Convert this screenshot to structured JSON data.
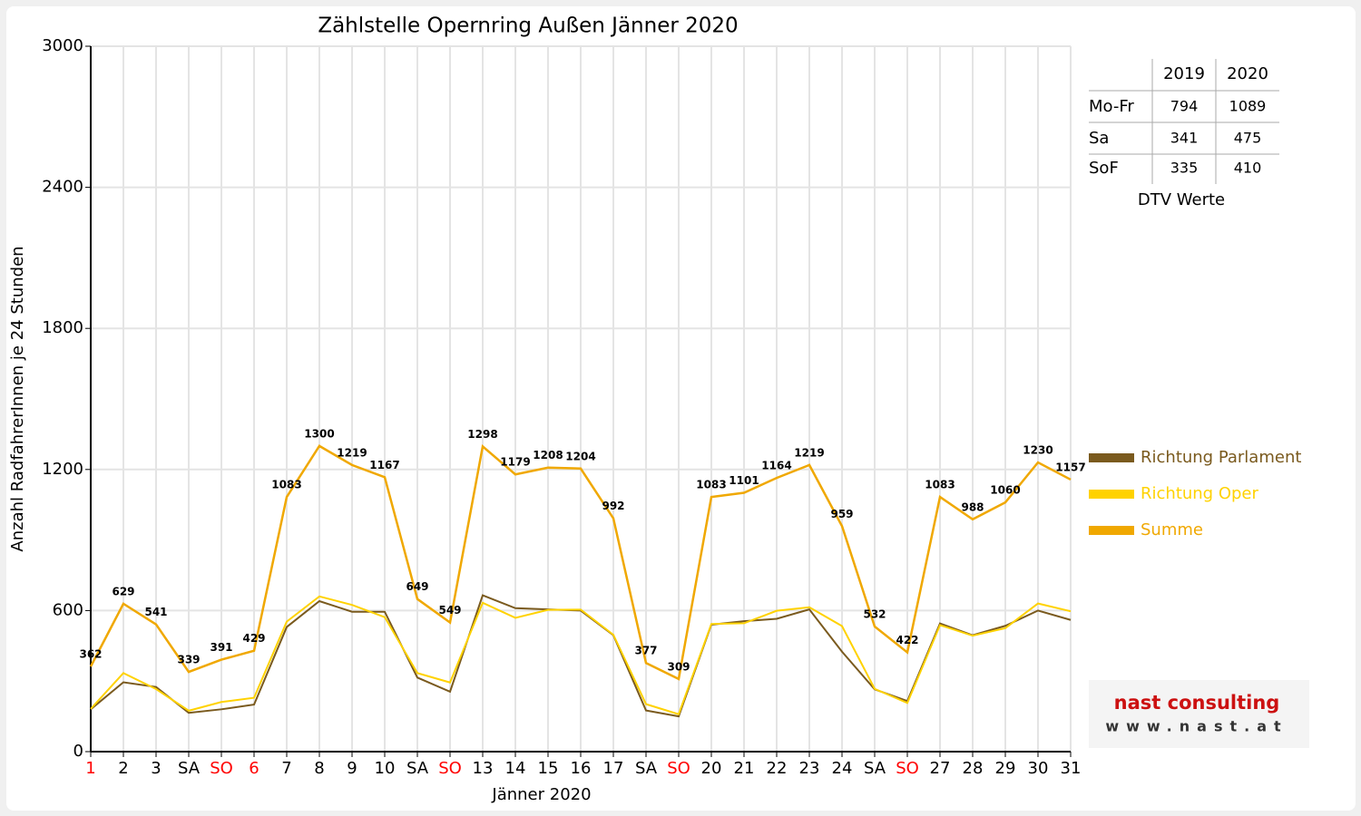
{
  "chart_data": {
    "type": "line",
    "title": "Zählstelle Opernring Außen Jänner 2020",
    "y_label": "Anzahl RadfahrerInnen je 24 Stunden",
    "x_label": "Jänner 2020",
    "categories": [
      "1",
      "2",
      "3",
      "SA",
      "SO",
      "6",
      "7",
      "8",
      "9",
      "10",
      "SA",
      "SO",
      "13",
      "14",
      "15",
      "16",
      "17",
      "SA",
      "SO",
      "20",
      "21",
      "22",
      "23",
      "24",
      "SA",
      "SO",
      "27",
      "28",
      "29",
      "30",
      "31"
    ],
    "category_colors": [
      "#ff0000",
      "#000000",
      "#000000",
      "#000000",
      "#ff0000",
      "#ff0000",
      "#000000",
      "#000000",
      "#000000",
      "#000000",
      "#000000",
      "#ff0000",
      "#000000",
      "#000000",
      "#000000",
      "#000000",
      "#000000",
      "#000000",
      "#ff0000",
      "#000000",
      "#000000",
      "#000000",
      "#000000",
      "#000000",
      "#000000",
      "#ff0000",
      "#000000",
      "#000000",
      "#000000",
      "#000000",
      "#000000"
    ],
    "series": [
      {
        "name": "Richtung Parlament",
        "color": "#7a5a1e",
        "values": [
          180,
          295,
          275,
          165,
          180,
          200,
          530,
          640,
          595,
          595,
          315,
          255,
          665,
          610,
          605,
          600,
          495,
          175,
          150,
          540,
          555,
          565,
          605,
          425,
          265,
          215,
          545,
          495,
          535,
          600,
          560
        ]
      },
      {
        "name": "Richtung Oper",
        "color": "#ffd200",
        "values": [
          182,
          334,
          266,
          174,
          211,
          229,
          553,
          660,
          624,
          572,
          334,
          294,
          633,
          569,
          603,
          604,
          497,
          202,
          159,
          543,
          546,
          599,
          614,
          534,
          267,
          207,
          538,
          493,
          525,
          630,
          597
        ]
      },
      {
        "name": "Summe",
        "color": "#f0a800",
        "values": [
          362,
          629,
          541,
          339,
          391,
          429,
          1083,
          1300,
          1219,
          1167,
          649,
          549,
          1298,
          1179,
          1208,
          1204,
          992,
          377,
          309,
          1083,
          1101,
          1164,
          1219,
          959,
          532,
          422,
          1083,
          988,
          1060,
          1230,
          1157
        ],
        "data_labels": true
      }
    ],
    "ylim": [
      0,
      3000
    ],
    "yticks": [
      0,
      600,
      1200,
      1800,
      2400,
      3000
    ],
    "grid": true,
    "legend": "right"
  },
  "table": {
    "header": [
      "2019",
      "2020"
    ],
    "rows": [
      [
        "Mo-Fr",
        794,
        1089
      ],
      [
        "Sa",
        341,
        475
      ],
      [
        "SoF",
        335,
        410
      ]
    ],
    "caption": "DTV Werte"
  },
  "logo": {
    "name": "nast consulting",
    "url": "www.nast.at"
  }
}
